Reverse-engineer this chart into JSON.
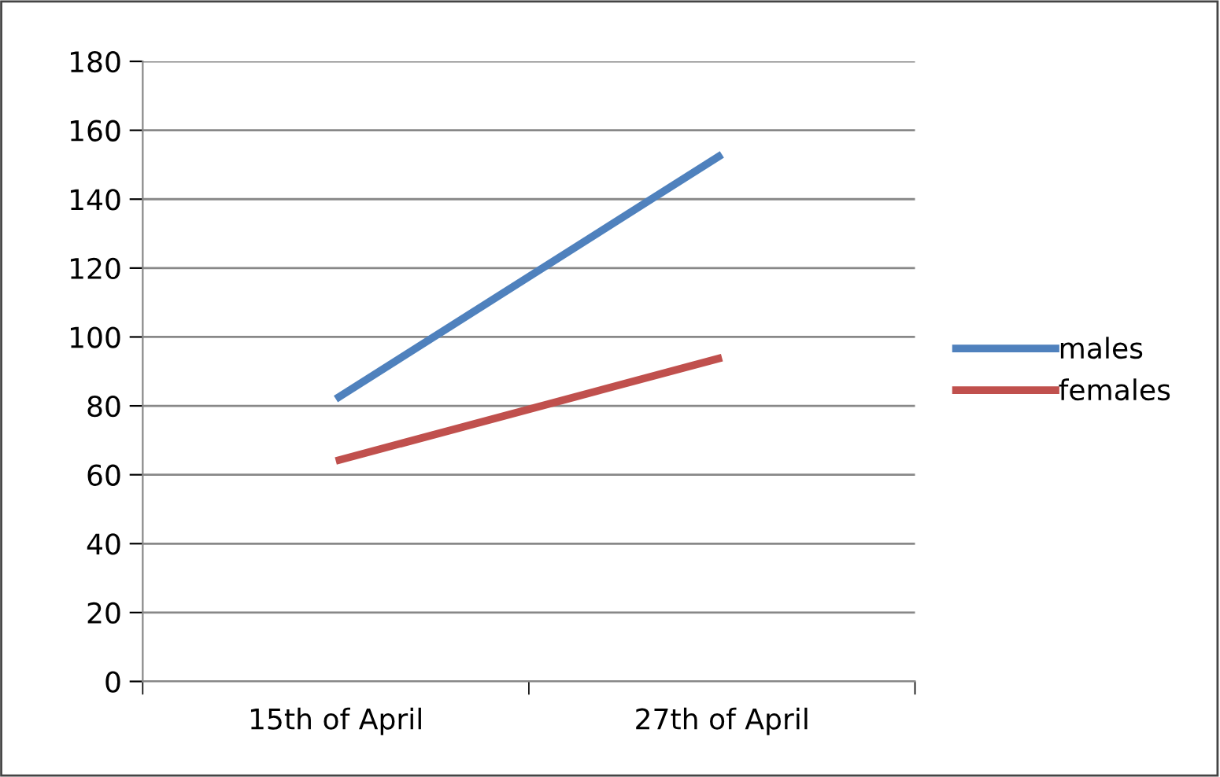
{
  "chart_data": {
    "type": "line",
    "categories": [
      "15th of April",
      "27th of April"
    ],
    "series": [
      {
        "name": "males",
        "color": "#4f81bd",
        "values": [
          82,
          153
        ]
      },
      {
        "name": "females",
        "color": "#c0504d",
        "values": [
          64,
          94
        ]
      }
    ],
    "ylim": [
      0,
      180
    ],
    "yticks": [
      0,
      20,
      40,
      60,
      80,
      100,
      120,
      140,
      160,
      180
    ],
    "grid": "y",
    "legend": "right",
    "marker": "none",
    "line_style": "solid"
  }
}
